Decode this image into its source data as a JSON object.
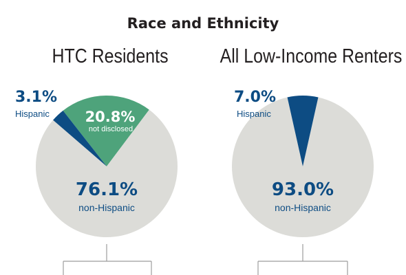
{
  "title": "Race and Ethnicity",
  "colors": {
    "non_hispanic": "#dcdcd8",
    "hispanic": "#0d4c83",
    "not_disclosed": "#4ea37b",
    "text_blue": "#0d4c83",
    "text_dark": "#231f20",
    "connector": "#9c9c9c"
  },
  "chart_data": [
    {
      "type": "pie",
      "title": "HTC Residents",
      "slices": [
        {
          "key": "not_disclosed",
          "label": "not disclosed",
          "value_label": "20.8%",
          "value": 20.8
        },
        {
          "key": "non_hispanic",
          "label": "non-Hispanic",
          "value_label": "76.1%",
          "value": 76.1
        },
        {
          "key": "hispanic",
          "label": "Hispanic",
          "value_label": "3.1%",
          "value": 3.1
        }
      ]
    },
    {
      "type": "pie",
      "title": "All Low-Income Renters",
      "slices": [
        {
          "key": "non_hispanic",
          "label": "non-Hispanic",
          "value_label": "93.0%",
          "value": 93.0
        },
        {
          "key": "hispanic",
          "label": "Hispanic",
          "value_label": "7.0%",
          "value": 7.0
        }
      ]
    }
  ]
}
